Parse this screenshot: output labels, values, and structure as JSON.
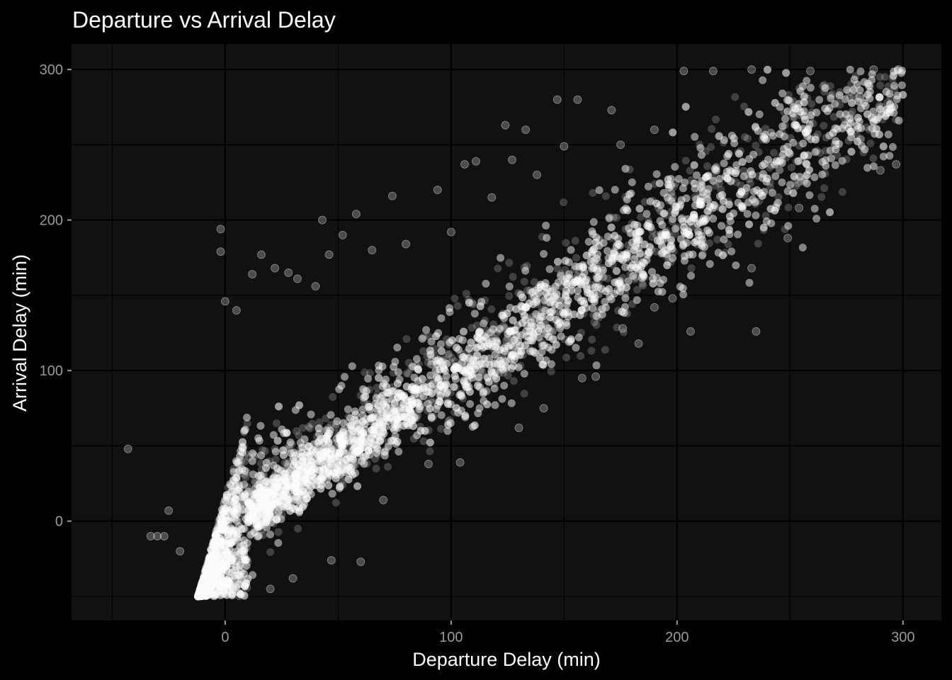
{
  "chart_data": {
    "type": "scatter",
    "title": "Departure vs Arrival Delay",
    "xlabel": "Departure Delay (min)",
    "ylabel": "Arrival Delay (min)",
    "xlim": [
      -68,
      317
    ],
    "ylim": [
      -66,
      317
    ],
    "x_ticks": [
      0,
      100,
      200,
      300
    ],
    "y_ticks": [
      0,
      100,
      200,
      300
    ],
    "grid": true,
    "legend": "none",
    "colors": {
      "background": "#000000",
      "panel": "#111111",
      "grid": "#000000",
      "point": "#ffffff",
      "text": "#ffffff",
      "tick_text": "#9a9a9a"
    },
    "point_opacity": 0.2,
    "trend": {
      "slope": 1.0,
      "intercept": -6,
      "note_range_x": [
        -10,
        300
      ]
    },
    "bounds": {
      "lower_y": -50,
      "upper_y": 300
    },
    "points": [
      {
        "x": -43,
        "y": 48
      },
      {
        "x": -33,
        "y": -10
      },
      {
        "x": -30,
        "y": -10
      },
      {
        "x": -27,
        "y": -10
      },
      {
        "x": -25,
        "y": 7
      },
      {
        "x": -20,
        "y": -20
      },
      {
        "x": -2,
        "y": 194
      },
      {
        "x": -2,
        "y": 179
      },
      {
        "x": 0,
        "y": 146
      },
      {
        "x": 5,
        "y": 140
      },
      {
        "x": 16,
        "y": 177
      },
      {
        "x": 12,
        "y": 164
      },
      {
        "x": 22,
        "y": 168
      },
      {
        "x": 32,
        "y": 161
      },
      {
        "x": 43,
        "y": 200
      },
      {
        "x": 46,
        "y": 177
      },
      {
        "x": 58,
        "y": 204
      },
      {
        "x": 74,
        "y": 216
      },
      {
        "x": 94,
        "y": 220
      },
      {
        "x": 106,
        "y": 237
      },
      {
        "x": 111,
        "y": 239
      },
      {
        "x": 124,
        "y": 263
      },
      {
        "x": 133,
        "y": 260
      },
      {
        "x": 147,
        "y": 280
      },
      {
        "x": 156,
        "y": 280
      },
      {
        "x": 171,
        "y": 273
      },
      {
        "x": 203,
        "y": 299
      },
      {
        "x": 216,
        "y": 299
      },
      {
        "x": 233,
        "y": 300
      },
      {
        "x": 259,
        "y": 299
      },
      {
        "x": 287,
        "y": 300
      },
      {
        "x": 298,
        "y": 300
      },
      {
        "x": 206,
        "y": 126
      },
      {
        "x": 235,
        "y": 126
      },
      {
        "x": 183,
        "y": 118
      },
      {
        "x": 164,
        "y": 96
      },
      {
        "x": 158,
        "y": 95
      },
      {
        "x": 141,
        "y": 75
      },
      {
        "x": 130,
        "y": 62
      },
      {
        "x": 104,
        "y": 39
      },
      {
        "x": 60,
        "y": -27
      },
      {
        "x": 47,
        "y": -26
      },
      {
        "x": 30,
        "y": -38
      },
      {
        "x": 20,
        "y": -45
      },
      {
        "x": 249,
        "y": 188
      },
      {
        "x": 254,
        "y": 208
      },
      {
        "x": 233,
        "y": 168
      },
      {
        "x": 198,
        "y": 148
      },
      {
        "x": 176,
        "y": 128
      },
      {
        "x": 190,
        "y": 142
      },
      {
        "x": 90,
        "y": 38
      },
      {
        "x": 70,
        "y": 14
      },
      {
        "x": 290,
        "y": 233
      },
      {
        "x": 297,
        "y": 237
      },
      {
        "x": 270,
        "y": 250
      },
      {
        "x": 281,
        "y": 282
      },
      {
        "x": 190,
        "y": 260
      },
      {
        "x": 175,
        "y": 250
      },
      {
        "x": 150,
        "y": 249
      },
      {
        "x": 127,
        "y": 240
      },
      {
        "x": 100,
        "y": 192
      },
      {
        "x": 80,
        "y": 184
      },
      {
        "x": 65,
        "y": 180
      },
      {
        "x": 40,
        "y": 156
      },
      {
        "x": 28,
        "y": 165
      },
      {
        "x": 52,
        "y": 190
      },
      {
        "x": 118,
        "y": 215
      },
      {
        "x": 138,
        "y": 230
      }
    ]
  }
}
